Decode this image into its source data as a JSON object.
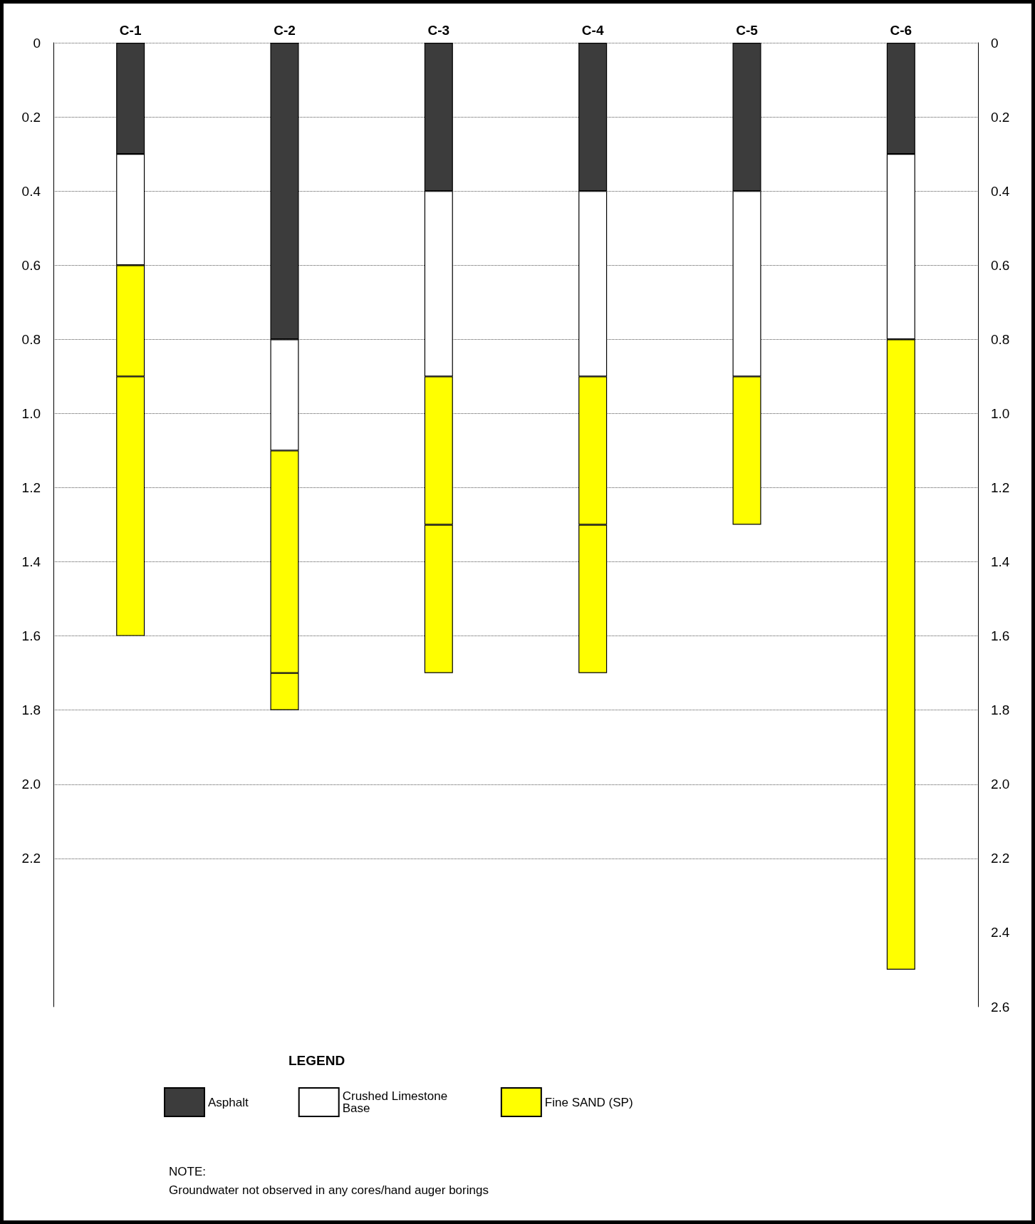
{
  "chart_data": {
    "type": "bar",
    "stacked": true,
    "categories": [
      "C-1",
      "C-2",
      "C-3",
      "C-4",
      "C-5",
      "C-6"
    ],
    "series": [
      {
        "name": "Asphalt",
        "color": "#3c3c3c",
        "values": [
          0.3,
          0.8,
          0.4,
          0.4,
          0.4,
          0.3
        ]
      },
      {
        "name": "Crushed Limestone Base",
        "color": "#ffffff",
        "values": [
          0.3,
          0.3,
          0.5,
          0.5,
          0.5,
          0.5
        ]
      },
      {
        "name": "Fine SAND (SP)",
        "color": "#ffff00",
        "values": [
          0.3,
          0.6,
          0.4,
          0.4,
          0.4,
          1.7
        ]
      },
      {
        "color": "#ffff00",
        "values": [
          0.7,
          0.1,
          0.4,
          0.4,
          null,
          null
        ]
      }
    ],
    "ylim": [
      2.6,
      0
    ],
    "yticks": [
      0,
      0.2,
      0.4,
      0.6,
      0.8,
      {
        "value": 1,
        "label": "1.0"
      },
      1.2,
      1.4,
      1.6,
      1.8,
      {
        "value": 2,
        "label": "2.0"
      },
      2.2
    ],
    "y2lim": [
      2.6,
      0
    ],
    "y2ticks": [
      0,
      0.2,
      0.4,
      0.6,
      0.8,
      {
        "value": 1,
        "label": "1.0"
      },
      1.2,
      1.4,
      1.6,
      1.8,
      {
        "value": 2,
        "label": "2.0"
      },
      2.2,
      2.4,
      2.6
    ],
    "grid": "y",
    "legend": "bottom left",
    "legend_title": "LEGEND",
    "annotations": [
      "NOTE:",
      "Groundwater not observed in any cores/hand auger borings"
    ]
  }
}
